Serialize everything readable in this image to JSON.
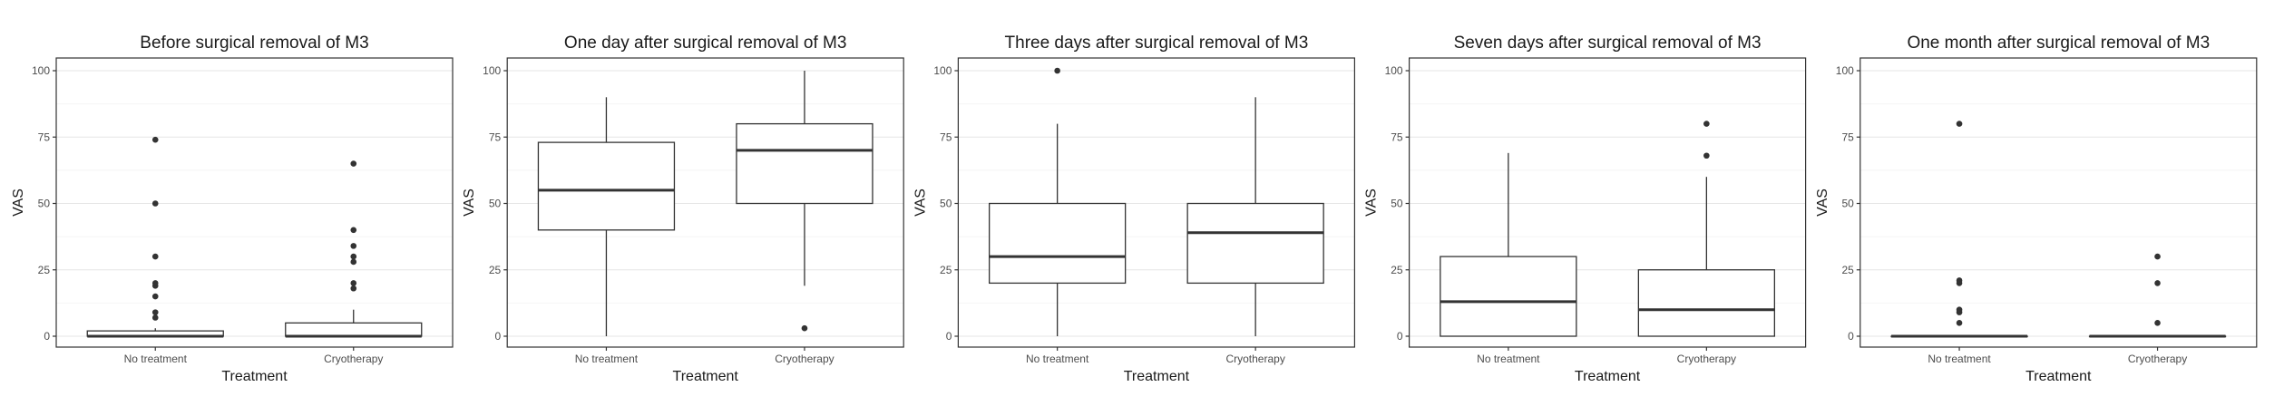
{
  "chart_data": [
    {
      "type": "box",
      "title": "Before surgical removal of M3",
      "xlabel": "Treatment",
      "ylabel": "VAS",
      "ylim": [
        0,
        100
      ],
      "yticks": [
        0,
        25,
        50,
        75,
        100
      ],
      "grid": true,
      "categories": [
        "No treatment",
        "Cryotherapy"
      ],
      "boxes": [
        {
          "min": 0,
          "q1": 0,
          "median": 0,
          "q3": 2,
          "max": 3,
          "outliers": [
            7,
            9,
            15,
            19,
            20,
            30,
            50,
            74
          ]
        },
        {
          "min": 0,
          "q1": 0,
          "median": 0,
          "q3": 5,
          "max": 10,
          "outliers": [
            18,
            20,
            28,
            30,
            34,
            40,
            65
          ]
        }
      ]
    },
    {
      "type": "box",
      "title": "One day after surgical removal of M3",
      "xlabel": "Treatment",
      "ylabel": "VAS",
      "ylim": [
        0,
        100
      ],
      "yticks": [
        0,
        25,
        50,
        75,
        100
      ],
      "grid": true,
      "categories": [
        "No treatment",
        "Cryotherapy"
      ],
      "boxes": [
        {
          "min": 0,
          "q1": 40,
          "median": 55,
          "q3": 73,
          "max": 90,
          "outliers": []
        },
        {
          "min": 19,
          "q1": 50,
          "median": 70,
          "q3": 80,
          "max": 100,
          "outliers": [
            3
          ]
        }
      ]
    },
    {
      "type": "box",
      "title": "Three days after surgical removal of M3",
      "xlabel": "Treatment",
      "ylabel": "VAS",
      "ylim": [
        0,
        100
      ],
      "yticks": [
        0,
        25,
        50,
        75,
        100
      ],
      "grid": true,
      "categories": [
        "No treatment",
        "Cryotherapy"
      ],
      "boxes": [
        {
          "min": 0,
          "q1": 20,
          "median": 30,
          "q3": 50,
          "max": 80,
          "outliers": [
            100
          ]
        },
        {
          "min": 0,
          "q1": 20,
          "median": 39,
          "q3": 50,
          "max": 90,
          "outliers": []
        }
      ]
    },
    {
      "type": "box",
      "title": "Seven days after surgical removal of M3",
      "xlabel": "Treatment",
      "ylabel": "VAS",
      "ylim": [
        0,
        100
      ],
      "yticks": [
        0,
        25,
        50,
        75,
        100
      ],
      "grid": true,
      "categories": [
        "No treatment",
        "Cryotherapy"
      ],
      "boxes": [
        {
          "min": 0,
          "q1": 0,
          "median": 13,
          "q3": 30,
          "max": 69,
          "outliers": []
        },
        {
          "min": 0,
          "q1": 0,
          "median": 10,
          "q3": 25,
          "max": 60,
          "outliers": [
            68,
            80
          ]
        }
      ]
    },
    {
      "type": "box",
      "title": "One month after surgical removal of M3",
      "xlabel": "Treatment",
      "ylabel": "VAS",
      "ylim": [
        0,
        100
      ],
      "yticks": [
        0,
        25,
        50,
        75,
        100
      ],
      "grid": true,
      "categories": [
        "No treatment",
        "Cryotherapy"
      ],
      "boxes": [
        {
          "min": 0,
          "q1": 0,
          "median": 0,
          "q3": 0,
          "max": 0,
          "outliers": [
            5,
            9,
            10,
            20,
            21,
            80
          ]
        },
        {
          "min": 0,
          "q1": 0,
          "median": 0,
          "q3": 0,
          "max": 0,
          "outliers": [
            5,
            20,
            30
          ]
        }
      ]
    }
  ]
}
